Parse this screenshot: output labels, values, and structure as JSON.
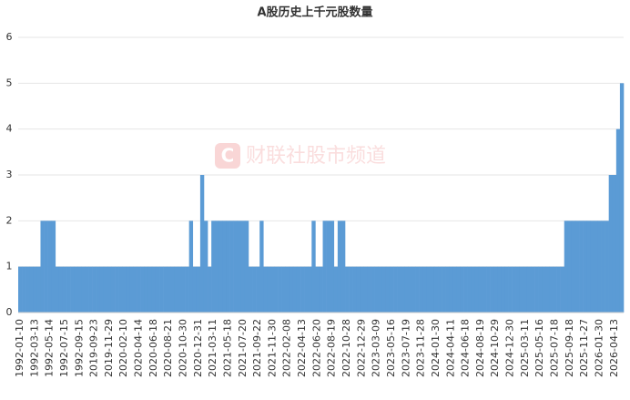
{
  "chart_data": {
    "type": "bar",
    "title": "A股历史上千元股数量",
    "watermark": "财联社股市频道",
    "color": "#5b9bd5",
    "categories": [
      "1992-01-10",
      null,
      null,
      null,
      "1992-03-13",
      null,
      null,
      null,
      "1992-05-14",
      null,
      null,
      null,
      "1992-07-15",
      null,
      null,
      null,
      "1992-09-15",
      null,
      null,
      null,
      "2019-09-23",
      null,
      null,
      null,
      "2019-11-29",
      null,
      null,
      null,
      "2020-02-10",
      null,
      null,
      null,
      "2020-04-14",
      null,
      null,
      null,
      "2020-06-18",
      null,
      null,
      null,
      "2020-08-21",
      null,
      null,
      null,
      "2020-10-30",
      null,
      null,
      null,
      "2020-12-31",
      null,
      null,
      null,
      "2021-03-11",
      null,
      null,
      null,
      "2021-05-18",
      null,
      null,
      null,
      "2021-07-20",
      null,
      null,
      null,
      "2021-09-22",
      null,
      null,
      null,
      "2021-11-30",
      null,
      null,
      null,
      "2022-02-08",
      null,
      null,
      null,
      "2022-04-13",
      null,
      null,
      null,
      "2022-06-20",
      null,
      null,
      null,
      "2022-08-19",
      null,
      null,
      null,
      "2022-10-28",
      null,
      null,
      null,
      "2022-12-29",
      null,
      null,
      null,
      "2023-03-09",
      null,
      null,
      null,
      "2023-05-16",
      null,
      null,
      null,
      "2023-07-19",
      null,
      null,
      null,
      "2023-11-28",
      null,
      null,
      null,
      "2024-01-30",
      null,
      null,
      null,
      "2024-04-11",
      null,
      null,
      null,
      "2024-06-18",
      null,
      null,
      null,
      "2024-08-19",
      null,
      null,
      null,
      "2024-10-29",
      null,
      null,
      null,
      "2024-12-30",
      null,
      null,
      null,
      "2025-03-11",
      null,
      null,
      null,
      "2025-05-16",
      null,
      null,
      null,
      "2025-07-18",
      null,
      null,
      null,
      "2025-09-18",
      null,
      null,
      null,
      "2025-11-27",
      null,
      null,
      null,
      "2026-01-30",
      null,
      null,
      null,
      "2026-04-13",
      null,
      null
    ],
    "values": [
      1,
      1,
      1,
      1,
      1,
      1,
      2,
      2,
      2,
      2,
      1,
      1,
      1,
      1,
      1,
      1,
      1,
      1,
      1,
      1,
      1,
      1,
      1,
      1,
      1,
      1,
      1,
      1,
      1,
      1,
      1,
      1,
      1,
      1,
      1,
      1,
      1,
      1,
      1,
      1,
      1,
      1,
      1,
      1,
      1,
      1,
      2,
      1,
      1,
      3,
      2,
      1,
      2,
      2,
      2,
      2,
      2,
      2,
      2,
      2,
      2,
      2,
      1,
      1,
      1,
      2,
      1,
      1,
      1,
      1,
      1,
      1,
      1,
      1,
      1,
      1,
      1,
      1,
      1,
      2,
      1,
      1,
      2,
      2,
      2,
      1,
      2,
      2,
      1,
      1,
      1,
      1,
      1,
      1,
      1,
      1,
      1,
      1,
      1,
      1,
      1,
      1,
      1,
      1,
      1,
      1,
      1,
      1,
      1,
      1,
      1,
      1,
      1,
      1,
      1,
      1,
      1,
      1,
      1,
      1,
      1,
      1,
      1,
      1,
      1,
      1,
      1,
      1,
      1,
      1,
      1,
      1,
      1,
      1,
      1,
      1,
      1,
      1,
      1,
      1,
      1,
      1,
      1,
      1,
      1,
      1,
      1,
      2,
      2,
      2,
      2,
      2,
      2,
      2,
      2,
      2,
      2,
      2,
      2,
      3,
      3,
      4,
      5
    ],
    "ylim": [
      0,
      6
    ],
    "yticks": [
      0,
      1,
      2,
      3,
      4,
      5,
      6
    ],
    "grid": true
  }
}
